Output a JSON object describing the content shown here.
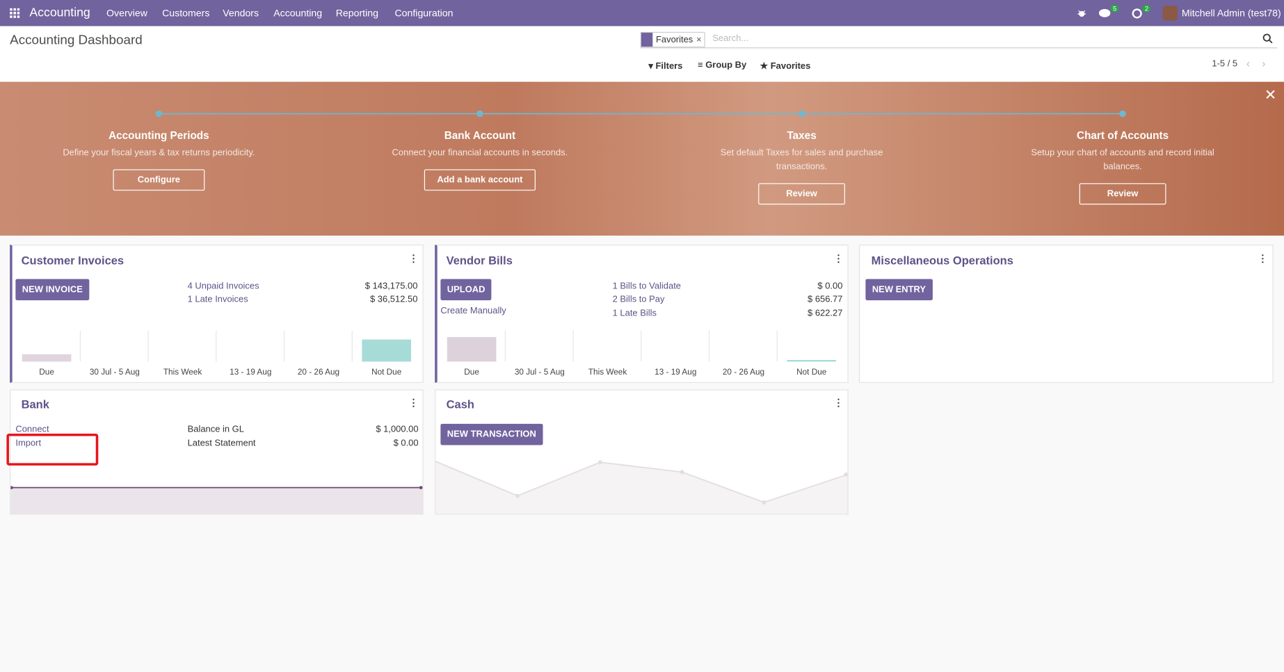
{
  "navbar": {
    "app": "Accounting",
    "menu": [
      "Overview",
      "Customers",
      "Vendors",
      "Accounting",
      "Reporting",
      "Configuration"
    ],
    "messages_badge": 5,
    "activities_badge": 2,
    "user": "Mitchell Admin (test78)"
  },
  "control_panel": {
    "title": "Accounting Dashboard",
    "facet": "Favorites",
    "search_placeholder": "Search...",
    "filters": "Filters",
    "group_by": "Group By",
    "favorites": "Favorites",
    "pager": "1-5 / 5"
  },
  "onboarding": {
    "steps": [
      {
        "title": "Accounting Periods",
        "description": "Define your fiscal years & tax returns periodicity.",
        "button": "Configure"
      },
      {
        "title": "Bank Account",
        "description": "Connect your financial accounts in seconds.",
        "button": "Add a bank account"
      },
      {
        "title": "Taxes",
        "description": "Set default Taxes for sales and purchase transactions.",
        "button": "Review"
      },
      {
        "title": "Chart of Accounts",
        "description": "Setup your chart of accounts and record initial balances.",
        "button": "Review"
      }
    ]
  },
  "journals": [
    {
      "title": "Customer Invoices",
      "button": "NEW INVOICE",
      "stats": [
        {
          "label": "4 Unpaid Invoices",
          "amount": "$ 143,175.00"
        },
        {
          "label": "1 Late Invoices",
          "amount": "$ 36,512.50"
        }
      ],
      "graph_labels": [
        "Due",
        "30 Jul - 5 Aug",
        "This Week",
        "13 - 19 Aug",
        "20 - 26 Aug",
        "Not Due"
      ]
    },
    {
      "title": "Vendor Bills",
      "button": "UPLOAD",
      "link": "Create Manually",
      "stats": [
        {
          "label": "1 Bills to Validate",
          "amount": "$ 0.00"
        },
        {
          "label": "2 Bills to Pay",
          "amount": "$ 656.77"
        },
        {
          "label": "1 Late Bills",
          "amount": "$ 622.27"
        }
      ],
      "graph_labels": [
        "Due",
        "30 Jul - 5 Aug",
        "This Week",
        "13 - 19 Aug",
        "20 - 26 Aug",
        "Not Due"
      ]
    },
    {
      "title": "Miscellaneous Operations",
      "button": "NEW ENTRY"
    },
    {
      "title": "Bank",
      "links": [
        "Connect",
        "Import"
      ],
      "stats": [
        {
          "label": "Balance in GL",
          "amount": "$ 1,000.00"
        },
        {
          "label": "Latest Statement",
          "amount": "$ 0.00"
        }
      ]
    },
    {
      "title": "Cash",
      "button": "NEW TRANSACTION"
    }
  ]
}
